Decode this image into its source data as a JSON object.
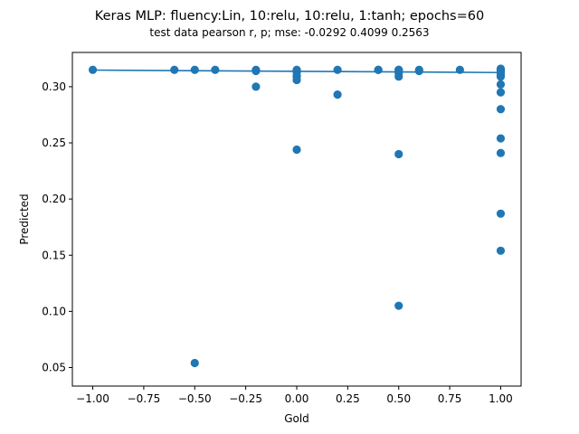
{
  "chart_data": {
    "type": "scatter",
    "title": "Keras MLP: fluency:Lin, 10:relu, 10:relu, 1:tanh; epochs=60",
    "subtitle": "test data pearson r, p; mse: -0.0292  0.4099  0.2563",
    "xlabel": "Gold",
    "ylabel": "Predicted",
    "xlim": [
      -1.1,
      1.1
    ],
    "ylim": [
      0.0335,
      0.3305
    ],
    "xticks": [
      -1.0,
      -0.75,
      -0.5,
      -0.25,
      0.0,
      0.25,
      0.5,
      0.75,
      1.0
    ],
    "xtick_labels": [
      "−1.00",
      "−0.75",
      "−0.50",
      "−0.25",
      "0.00",
      "0.25",
      "0.50",
      "0.75",
      "1.00"
    ],
    "yticks": [
      0.05,
      0.1,
      0.15,
      0.2,
      0.25,
      0.3
    ],
    "ytick_labels": [
      "0.05",
      "0.10",
      "0.15",
      "0.20",
      "0.25",
      "0.30"
    ],
    "grid": false,
    "color": "#1f77b4",
    "series": [
      {
        "kind": "points",
        "x": [
          -1.0,
          -0.6,
          -0.5,
          -0.5,
          -0.4,
          -0.2,
          -0.2,
          -0.2,
          0.0,
          0.0,
          0.0,
          0.0,
          0.0,
          0.0,
          0.2,
          0.2,
          0.4,
          0.4,
          0.5,
          0.5,
          0.5,
          0.5,
          0.5,
          0.5,
          0.5,
          0.6,
          0.6,
          0.8,
          1.0,
          1.0,
          1.0,
          1.0,
          1.0,
          1.0,
          1.0,
          1.0,
          1.0,
          1.0,
          1.0,
          1.0,
          1.0,
          1.0
        ],
        "y": [
          0.315,
          0.315,
          0.315,
          0.054,
          0.315,
          0.315,
          0.314,
          0.3,
          0.315,
          0.313,
          0.31,
          0.309,
          0.306,
          0.244,
          0.315,
          0.293,
          0.315,
          0.315,
          0.315,
          0.314,
          0.312,
          0.309,
          0.24,
          0.105,
          0.315,
          0.315,
          0.314,
          0.315,
          0.315,
          0.313,
          0.311,
          0.309,
          0.302,
          0.295,
          0.28,
          0.254,
          0.241,
          0.187,
          0.154,
          0.315,
          0.316,
          0.314
        ]
      },
      {
        "kind": "line",
        "x": [
          -1.0,
          1.0
        ],
        "y": [
          0.3148,
          0.3126
        ]
      }
    ]
  }
}
